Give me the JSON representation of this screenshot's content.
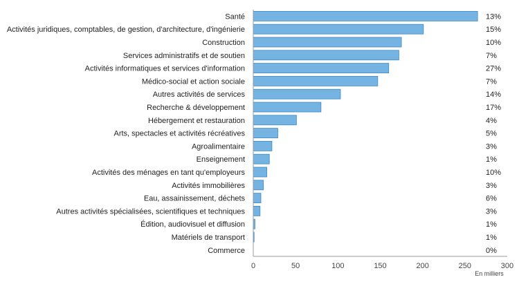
{
  "chart_data": {
    "type": "bar",
    "orientation": "horizontal",
    "categories": [
      "Santé",
      "Activités juridiques, comptables, de gestion, d'architecture, d'ingénierie",
      "Construction",
      "Services administratifs et de soutien",
      "Activités informatiques et services d'information",
      "Médico-social et action sociale",
      "Autres activités de services",
      "Recherche & développement",
      "Hébergement et restauration",
      "Arts, spectacles et activités récréatives",
      "Agroalimentaire",
      "Enseignement",
      "Activités des ménages en tant qu'employeurs",
      "Activités immobilières",
      "Eau, assainissement, déchets",
      "Autres activités spécialisées, scientifiques et techniques",
      "Édition, audiovisuel et diffusion",
      "Matériels de transport",
      "Commerce"
    ],
    "values": [
      265,
      201,
      175,
      172,
      160,
      147,
      103,
      80,
      51,
      29,
      22,
      19,
      16,
      12,
      9,
      8,
      2,
      1,
      0
    ],
    "percent_labels": [
      "13%",
      "15%",
      "10%",
      "7%",
      "27%",
      "7%",
      "14%",
      "17%",
      "4%",
      "5%",
      "3%",
      "1%",
      "10%",
      "3%",
      "6%",
      "3%",
      "1%",
      "1%",
      "0%"
    ],
    "xticks": [
      "0",
      "50",
      "100",
      "150",
      "200",
      "250",
      "300"
    ],
    "xlim": [
      0,
      300
    ],
    "unit_label": "En milliers",
    "grid": false,
    "bar_color": "#74b3e2",
    "bar_edge_color": "#3d8ac8"
  }
}
